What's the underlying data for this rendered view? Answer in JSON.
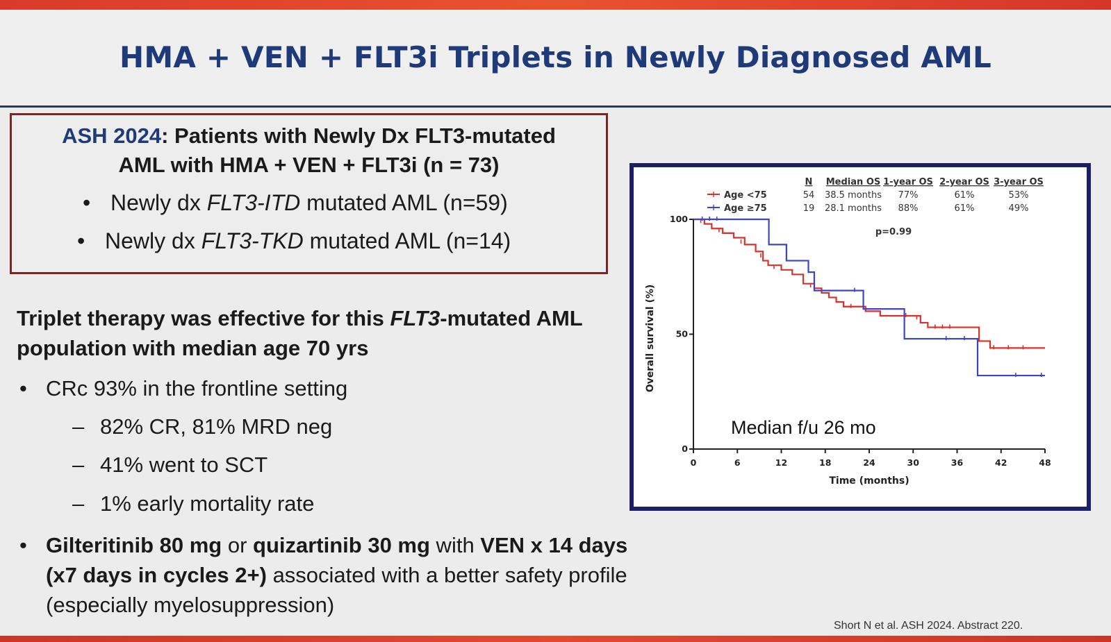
{
  "slide": {
    "title": "HMA + VEN + FLT3i Triplets in Newly Diagnosed AML",
    "colors": {
      "title": "#1e3a78",
      "box_border": "#7a2626",
      "chart_frame": "#1b1f66",
      "accent_bar": "#e04a2e"
    }
  },
  "ash_box": {
    "tag": "ASH 2024",
    "heading_rest": ": Patients with Newly Dx FLT3-mutated",
    "heading_line2": "AML with HMA + VEN + FLT3i (n = 73)",
    "bullets": [
      {
        "pre": "Newly dx ",
        "gene": "FLT3-ITD",
        "post": " mutated AML (n=59)"
      },
      {
        "pre": "Newly dx ",
        "gene": "FLT3-TKD",
        "post": " mutated AML (n=14)"
      }
    ]
  },
  "main": {
    "heading_pre": "Triplet therapy was effective for this ",
    "heading_gene": "FLT3",
    "heading_post": "-mutated AML population with median age 70 yrs",
    "bullet1": "CRc 93% in the frontline setting",
    "sub_bullets": [
      "82% CR, 81% MRD neg",
      "41% went to SCT",
      "1% early mortality rate"
    ],
    "bullet2": {
      "b1": "Gilteritinib 80 mg",
      "t1": " or ",
      "b2": "quizartinib 30 mg",
      "t2": " with ",
      "b3": "VEN x 14 days (x7 days in cycles 2+)",
      "t3": " associated with a better safety profile (especially myelosuppression)"
    }
  },
  "citation": "Short N et al. ASH 2024. Abstract 220.",
  "chart_data": {
    "type": "line",
    "xlabel": "Time (months)",
    "ylabel": "Overall survival (%)",
    "xlim": [
      0,
      48
    ],
    "ylim": [
      0,
      100
    ],
    "xticks": [
      0,
      6,
      12,
      18,
      24,
      30,
      36,
      42,
      48
    ],
    "yticks": [
      0,
      50,
      100
    ],
    "grid": false,
    "legend_position": "top-left",
    "annotations": {
      "pvalue": "p=0.99",
      "median_fu": "Median f/u 26 mo"
    },
    "table": {
      "headers": [
        "N",
        "Median OS",
        "1-year OS",
        "2-year OS",
        "3-year OS"
      ],
      "rows": [
        {
          "name": "Age <75",
          "n": "54",
          "median": "38.5 months",
          "y1": "77%",
          "y2": "61%",
          "y3": "53%"
        },
        {
          "name": "Age ≥75",
          "n": "19",
          "median": "28.1 months",
          "y1": "88%",
          "y2": "61%",
          "y3": "49%"
        }
      ]
    },
    "series": [
      {
        "name": "Age <75",
        "color": "#d9302a",
        "points": [
          [
            0,
            100
          ],
          [
            1.5,
            98
          ],
          [
            2.5,
            96
          ],
          [
            4,
            94
          ],
          [
            5.5,
            92
          ],
          [
            7,
            89
          ],
          [
            8.5,
            86
          ],
          [
            9.5,
            82
          ],
          [
            10.2,
            80
          ],
          [
            12,
            78
          ],
          [
            13.5,
            76
          ],
          [
            15,
            72
          ],
          [
            16.5,
            70
          ],
          [
            17.5,
            68
          ],
          [
            18.5,
            66
          ],
          [
            19.5,
            64
          ],
          [
            20.5,
            62
          ],
          [
            23.5,
            60
          ],
          [
            25.5,
            58
          ],
          [
            27.5,
            58
          ],
          [
            31,
            55
          ],
          [
            32,
            53
          ],
          [
            36,
            53
          ],
          [
            38.5,
            53
          ],
          [
            39,
            47
          ],
          [
            40.5,
            44
          ],
          [
            44,
            44
          ],
          [
            48,
            44
          ]
        ],
        "censors": [
          [
            1.0,
            99
          ],
          [
            3.5,
            95
          ],
          [
            6.5,
            90
          ],
          [
            9.2,
            84
          ],
          [
            11,
            79
          ],
          [
            16,
            71
          ],
          [
            21.5,
            62
          ],
          [
            29,
            58
          ],
          [
            30.5,
            57
          ],
          [
            33,
            53
          ],
          [
            34,
            53
          ],
          [
            35,
            53
          ],
          [
            41,
            44
          ],
          [
            43,
            44
          ],
          [
            45,
            44
          ]
        ]
      },
      {
        "name": "Age ≥75",
        "color": "#3b45c8",
        "points": [
          [
            0,
            100
          ],
          [
            9.5,
            100
          ],
          [
            10.3,
            89
          ],
          [
            12,
            89
          ],
          [
            12.7,
            82
          ],
          [
            15.2,
            82
          ],
          [
            15.7,
            77
          ],
          [
            16.5,
            69
          ],
          [
            19,
            69
          ],
          [
            22.5,
            69
          ],
          [
            23.2,
            61
          ],
          [
            28.2,
            61
          ],
          [
            28.8,
            48
          ],
          [
            34,
            48
          ],
          [
            38.5,
            48
          ],
          [
            38.8,
            32
          ],
          [
            40.5,
            32
          ],
          [
            48,
            32
          ]
        ],
        "censors": [
          [
            1.2,
            100
          ],
          [
            2.2,
            100
          ],
          [
            3.2,
            100
          ],
          [
            22,
            69
          ],
          [
            34.5,
            48
          ],
          [
            37,
            48
          ],
          [
            44,
            32
          ],
          [
            47.5,
            32
          ]
        ]
      }
    ]
  }
}
